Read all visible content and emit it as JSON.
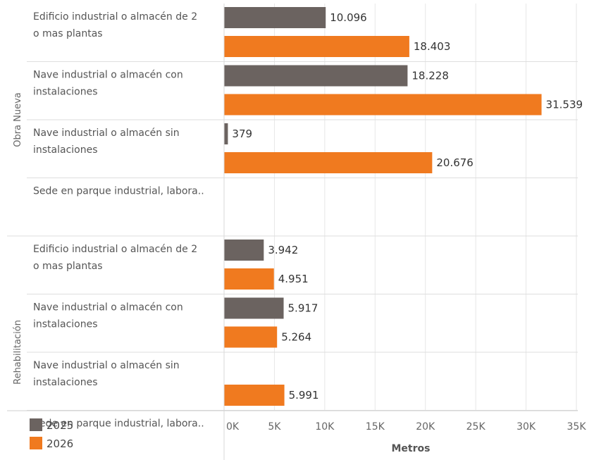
{
  "chart_data": {
    "type": "bar",
    "orientation": "horizontal",
    "xlabel": "Metros",
    "xlim": [
      0,
      35000
    ],
    "xticks": [
      0,
      5000,
      10000,
      15000,
      20000,
      25000,
      30000,
      35000
    ],
    "xtick_labels": [
      "0K",
      "5K",
      "10K",
      "15K",
      "20K",
      "25K",
      "30K",
      "35K"
    ],
    "grid": true,
    "legend": {
      "placement": "bottom-left"
    },
    "series": [
      {
        "name": "2025",
        "color": "#6b6360"
      },
      {
        "name": "2026",
        "color": "#f07a1f"
      }
    ],
    "groups": [
      {
        "name": "Obra Nueva",
        "categories": [
          {
            "label_lines": [
              "Edificio industrial o almacén de 2",
              "o mas plantas"
            ],
            "values": [
              10096,
              18403
            ],
            "labels": [
              "10.096",
              "18.403"
            ]
          },
          {
            "label_lines": [
              "Nave industrial o almacén con",
              "instalaciones"
            ],
            "values": [
              18228,
              31539
            ],
            "labels": [
              "18.228",
              "31.539"
            ]
          },
          {
            "label_lines": [
              "Nave industrial o almacén sin",
              "instalaciones"
            ],
            "values": [
              379,
              20676
            ],
            "labels": [
              "379",
              "20.676"
            ]
          },
          {
            "label_lines": [
              "Sede en parque industrial, labora.."
            ],
            "values": [
              null,
              null
            ],
            "labels": [
              "",
              ""
            ]
          }
        ]
      },
      {
        "name": "Rehabilitación",
        "categories": [
          {
            "label_lines": [
              "Edificio industrial o almacén de 2",
              "o mas plantas"
            ],
            "values": [
              3942,
              4951
            ],
            "labels": [
              "3.942",
              "4.951"
            ]
          },
          {
            "label_lines": [
              "Nave industrial o almacén con",
              "instalaciones"
            ],
            "values": [
              5917,
              5264
            ],
            "labels": [
              "5.917",
              "5.264"
            ]
          },
          {
            "label_lines": [
              "Nave industrial o almacén sin",
              "instalaciones"
            ],
            "values": [
              null,
              5991
            ],
            "labels": [
              "",
              "5.991"
            ]
          },
          {
            "label_lines": [
              "Sede en parque industrial, labora.."
            ],
            "values": [
              null,
              null
            ],
            "labels": [
              "",
              ""
            ]
          }
        ]
      }
    ]
  }
}
